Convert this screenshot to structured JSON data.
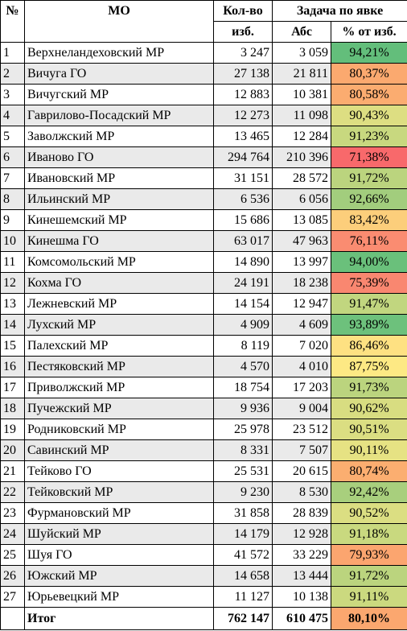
{
  "header": {
    "num": "№",
    "mo": "МО",
    "voters_line1": "Кол-во",
    "voters_line2": "изб.",
    "task": "Задача по явке",
    "abs": "Абс",
    "pct": "% от изб."
  },
  "rows": [
    {
      "n": "1",
      "name": "Верхнеландеховский МР",
      "voters": "3 247",
      "abs": "3 059",
      "pct": "94,21%",
      "color": "#63be7b"
    },
    {
      "n": "2",
      "name": "Вичуга ГО",
      "voters": "27 138",
      "abs": "21 811",
      "pct": "80,37%",
      "color": "#fba96f"
    },
    {
      "n": "3",
      "name": "Вичугский МР",
      "voters": "12 883",
      "abs": "10 381",
      "pct": "80,58%",
      "color": "#fbac70"
    },
    {
      "n": "4",
      "name": "Гаврилово-Посадский МР",
      "voters": "12 273",
      "abs": "11 098",
      "pct": "90,43%",
      "color": "#ddde82"
    },
    {
      "n": "5",
      "name": "Заволжский МР",
      "voters": "13 465",
      "abs": "12 284",
      "pct": "91,23%",
      "color": "#c8d87f"
    },
    {
      "n": "6",
      "name": "Иваново ГО",
      "voters": "294 764",
      "abs": "210 396",
      "pct": "71,38%",
      "color": "#f8696b"
    },
    {
      "n": "7",
      "name": "Ивановский МР",
      "voters": "31 151",
      "abs": "28 572",
      "pct": "91,72%",
      "color": "#bbd47e"
    },
    {
      "n": "8",
      "name": "Ильинский МР",
      "voters": "6 536",
      "abs": "6 056",
      "pct": "92,66%",
      "color": "#a2cd7d"
    },
    {
      "n": "9",
      "name": "Кинешемский МР",
      "voters": "15 686",
      "abs": "13 085",
      "pct": "83,42%",
      "color": "#fcce7b"
    },
    {
      "n": "10",
      "name": "Кинешма ГО",
      "voters": "63 017",
      "abs": "47 963",
      "pct": "76,11%",
      "color": "#fa8c71"
    },
    {
      "n": "11",
      "name": "Комсомольский МР",
      "voters": "14 890",
      "abs": "13 997",
      "pct": "94,00%",
      "color": "#6ac07b"
    },
    {
      "n": "12",
      "name": "Кохма ГО",
      "voters": "24 191",
      "abs": "18 238",
      "pct": "75,39%",
      "color": "#f98770"
    },
    {
      "n": "13",
      "name": "Лежневский МР",
      "voters": "14 154",
      "abs": "12 947",
      "pct": "91,47%",
      "color": "#c1d67f"
    },
    {
      "n": "14",
      "name": "Лухский МР",
      "voters": "4 909",
      "abs": "4 609",
      "pct": "93,89%",
      "color": "#6dc17c"
    },
    {
      "n": "15",
      "name": "Палехский МР",
      "voters": "8 119",
      "abs": "7 020",
      "pct": "86,46%",
      "color": "#fee182"
    },
    {
      "n": "16",
      "name": "Пестяковский МР",
      "voters": "4 570",
      "abs": "4 010",
      "pct": "87,75%",
      "color": "#fde984"
    },
    {
      "n": "17",
      "name": "Приволжский МР",
      "voters": "18 754",
      "abs": "17 203",
      "pct": "91,73%",
      "color": "#bbd47e"
    },
    {
      "n": "18",
      "name": "Пучежский МР",
      "voters": "9 936",
      "abs": "9 004",
      "pct": "90,62%",
      "color": "#d8dd81"
    },
    {
      "n": "19",
      "name": "Родниковский МР",
      "voters": "25 978",
      "abs": "23 512",
      "pct": "90,51%",
      "color": "#dbde82"
    },
    {
      "n": "20",
      "name": "Савинский МР",
      "voters": "8 331",
      "abs": "7 507",
      "pct": "90,11%",
      "color": "#e6e283"
    },
    {
      "n": "21",
      "name": "Тейково ГО",
      "voters": "25 531",
      "abs": "20 615",
      "pct": "80,74%",
      "color": "#fbae70"
    },
    {
      "n": "22",
      "name": "Тейковский МР",
      "voters": "9 230",
      "abs": "8 530",
      "pct": "92,42%",
      "color": "#a8cf7d"
    },
    {
      "n": "23",
      "name": "Фурмановский МР",
      "voters": "31 858",
      "abs": "28 839",
      "pct": "90,52%",
      "color": "#dbde82"
    },
    {
      "n": "24",
      "name": "Шуйский МР",
      "voters": "14 179",
      "abs": "12 928",
      "pct": "91,18%",
      "color": "#c9d97f"
    },
    {
      "n": "25",
      "name": "Шуя ГО",
      "voters": "41 572",
      "abs": "33 229",
      "pct": "79,93%",
      "color": "#fba56f"
    },
    {
      "n": "26",
      "name": "Южский МР",
      "voters": "14 658",
      "abs": "13 444",
      "pct": "91,72%",
      "color": "#bbd47e"
    },
    {
      "n": "27",
      "name": "Юрьевецкий МР",
      "voters": "11 127",
      "abs": "10 138",
      "pct": "91,11%",
      "color": "#cbd97f"
    }
  ],
  "total": {
    "label": "Итог",
    "voters": "762 147",
    "abs": "610 475",
    "pct": "80,10%",
    "color": "#fba76f"
  }
}
